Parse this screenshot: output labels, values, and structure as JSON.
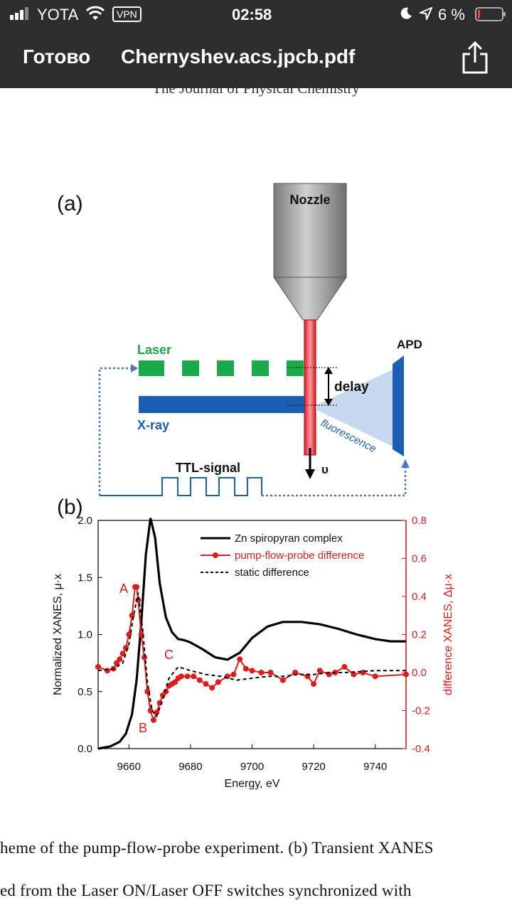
{
  "status": {
    "carrier": "YOTA",
    "vpn": "VPN",
    "time": "02:58",
    "battery": "6 %"
  },
  "nav": {
    "done_label": "Готово",
    "filename": "Chernyshev.acs.jpcb.pdf"
  },
  "page": {
    "running_head": "The Journal of Physical Chemistry",
    "caption_line1": "heme of the pump-flow-probe experiment. (b) Transient XANES",
    "caption_line2": "ed from the Laser ON/Laser OFF switches synchronized with"
  },
  "figure_a": {
    "panel_label": "(a)",
    "nozzle": "Nozzle",
    "laser": "Laser",
    "xray": "X-ray",
    "apd": "APD",
    "delay": "delay",
    "fluorescence": "fluorescence",
    "ttl": "TTL-signal",
    "velocity": "υ"
  },
  "figure_b": {
    "panel_label": "(b)",
    "marker_a": "A",
    "marker_b": "B",
    "marker_c": "C"
  },
  "chart_data": {
    "type": "line",
    "xlabel": "Energy, eV",
    "ylabel": "Normalized XANES, μ·x",
    "y2label": "difference XANES, Δμ·x",
    "xlim": [
      9650,
      9750
    ],
    "ylim": [
      0,
      2.0
    ],
    "y2lim": [
      -0.4,
      0.8
    ],
    "xticks": [
      "9660",
      "9680",
      "9700",
      "9720",
      "9740"
    ],
    "yticks": [
      "0.0",
      "0.5",
      "1.0",
      "1.5",
      "2.0"
    ],
    "y2ticks": [
      "-0.4",
      "-0.2",
      "0.0",
      "0.2",
      "0.4",
      "0.6",
      "0.8"
    ],
    "legend_position": "top-right",
    "series": [
      {
        "name": "Zn spiropyran complex",
        "axis": "left",
        "color": "#000000",
        "style": "solid",
        "x": [
          9650,
          9654,
          9657,
          9659,
          9661,
          9662.5,
          9664,
          9665.5,
          9667,
          9668.5,
          9670,
          9672,
          9674,
          9676,
          9678,
          9680,
          9684,
          9688,
          9692,
          9696,
          9700,
          9705,
          9710,
          9716,
          9722,
          9728,
          9734,
          9740,
          9745,
          9750
        ],
        "y": [
          0.0,
          0.02,
          0.06,
          0.13,
          0.3,
          0.6,
          1.1,
          1.7,
          2.02,
          1.85,
          1.45,
          1.15,
          1.02,
          0.96,
          0.95,
          0.93,
          0.87,
          0.8,
          0.78,
          0.84,
          0.97,
          1.07,
          1.11,
          1.11,
          1.09,
          1.05,
          1.0,
          0.96,
          0.94,
          0.94
        ]
      },
      {
        "name": "pump-flow-probe difference",
        "axis": "right",
        "color": "#dd1c1c",
        "style": "solid-markers",
        "x": [
          9650,
          9653,
          9655,
          9656,
          9657,
          9658,
          9659,
          9660,
          9661,
          9662,
          9662.5,
          9663,
          9664,
          9665,
          9666,
          9667,
          9668,
          9669,
          9670,
          9671,
          9672,
          9673,
          9674,
          9675,
          9676,
          9677,
          9679,
          9681,
          9683,
          9685,
          9687,
          9689,
          9692,
          9694,
          9696,
          9698,
          9700,
          9703,
          9706,
          9710,
          9714,
          9718,
          9720,
          9722,
          9725,
          9727,
          9730,
          9733,
          9736,
          9740,
          9750
        ],
        "y": [
          0.03,
          0.01,
          0.02,
          0.05,
          0.07,
          0.1,
          0.13,
          0.2,
          0.3,
          0.45,
          0.45,
          0.38,
          0.2,
          0.08,
          -0.1,
          -0.2,
          -0.25,
          -0.21,
          -0.16,
          -0.12,
          -0.1,
          -0.07,
          -0.06,
          -0.05,
          -0.03,
          -0.02,
          -0.02,
          -0.02,
          -0.04,
          -0.06,
          -0.08,
          -0.05,
          -0.02,
          -0.01,
          0.07,
          0.02,
          0.01,
          0.0,
          0.0,
          -0.04,
          0.0,
          -0.02,
          -0.06,
          0.01,
          -0.01,
          0.0,
          0.03,
          -0.01,
          0.0,
          -0.02,
          -0.01
        ]
      },
      {
        "name": "static difference",
        "axis": "right",
        "color": "#000000",
        "style": "dashed",
        "x": [
          9650,
          9655,
          9658,
          9660,
          9661.5,
          9663,
          9664.5,
          9666,
          9667.5,
          9669,
          9671,
          9673,
          9676,
          9680,
          9685,
          9690,
          9695,
          9700,
          9705,
          9710,
          9715,
          9720,
          9725,
          9730,
          9740,
          9750
        ],
        "y": [
          0.01,
          0.02,
          0.05,
          0.15,
          0.3,
          0.42,
          0.22,
          -0.05,
          -0.2,
          -0.23,
          -0.14,
          -0.03,
          0.03,
          0.01,
          -0.01,
          -0.02,
          -0.04,
          -0.03,
          -0.02,
          -0.02,
          -0.01,
          -0.01,
          0.0,
          0.0,
          0.01,
          0.01
        ]
      }
    ]
  }
}
